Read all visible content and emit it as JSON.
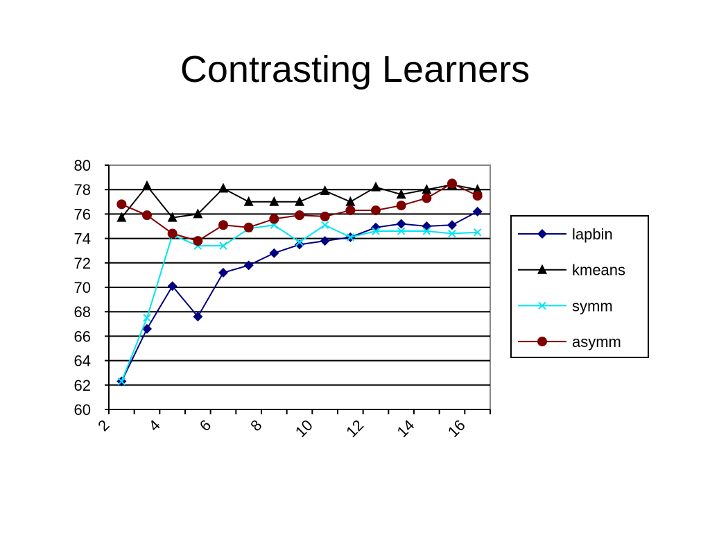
{
  "chart_data": {
    "type": "line",
    "title": "Contrasting Learners",
    "categories": [
      "2",
      null,
      "4",
      null,
      "6",
      null,
      "8",
      null,
      "10",
      null,
      "12",
      null,
      "14",
      null,
      "16"
    ],
    "series": [
      {
        "name": "lapbin",
        "color": "#000080",
        "marker": "diamond",
        "values": [
          62.3,
          66.6,
          70.1,
          67.6,
          71.2,
          71.8,
          72.8,
          73.5,
          73.8,
          74.1,
          74.9,
          75.2,
          75.0,
          75.1,
          76.2
        ]
      },
      {
        "name": "kmeans",
        "color": "#000000",
        "marker": "triangle",
        "values": [
          75.7,
          78.3,
          75.7,
          76.0,
          78.1,
          77.0,
          77.0,
          77.0,
          77.9,
          77.0,
          78.2,
          77.6,
          78.0,
          78.4,
          78.0
        ]
      },
      {
        "name": "symm",
        "color": "#00e5f0",
        "marker": "x",
        "values": [
          62.3,
          67.5,
          74.3,
          73.4,
          73.4,
          74.8,
          75.1,
          73.7,
          75.1,
          74.1,
          74.6,
          74.6,
          74.6,
          74.4,
          74.5
        ]
      },
      {
        "name": "asymm",
        "color": "#800000",
        "marker": "circle",
        "values": [
          76.8,
          75.9,
          74.4,
          73.8,
          75.1,
          74.9,
          75.6,
          75.9,
          75.8,
          76.3,
          76.3,
          76.7,
          77.3,
          78.5,
          77.5
        ]
      }
    ],
    "ylim": [
      60,
      80
    ],
    "yticks": [
      60,
      62,
      64,
      66,
      68,
      70,
      72,
      74,
      76,
      78,
      80
    ],
    "grid": true,
    "legend": "right"
  }
}
